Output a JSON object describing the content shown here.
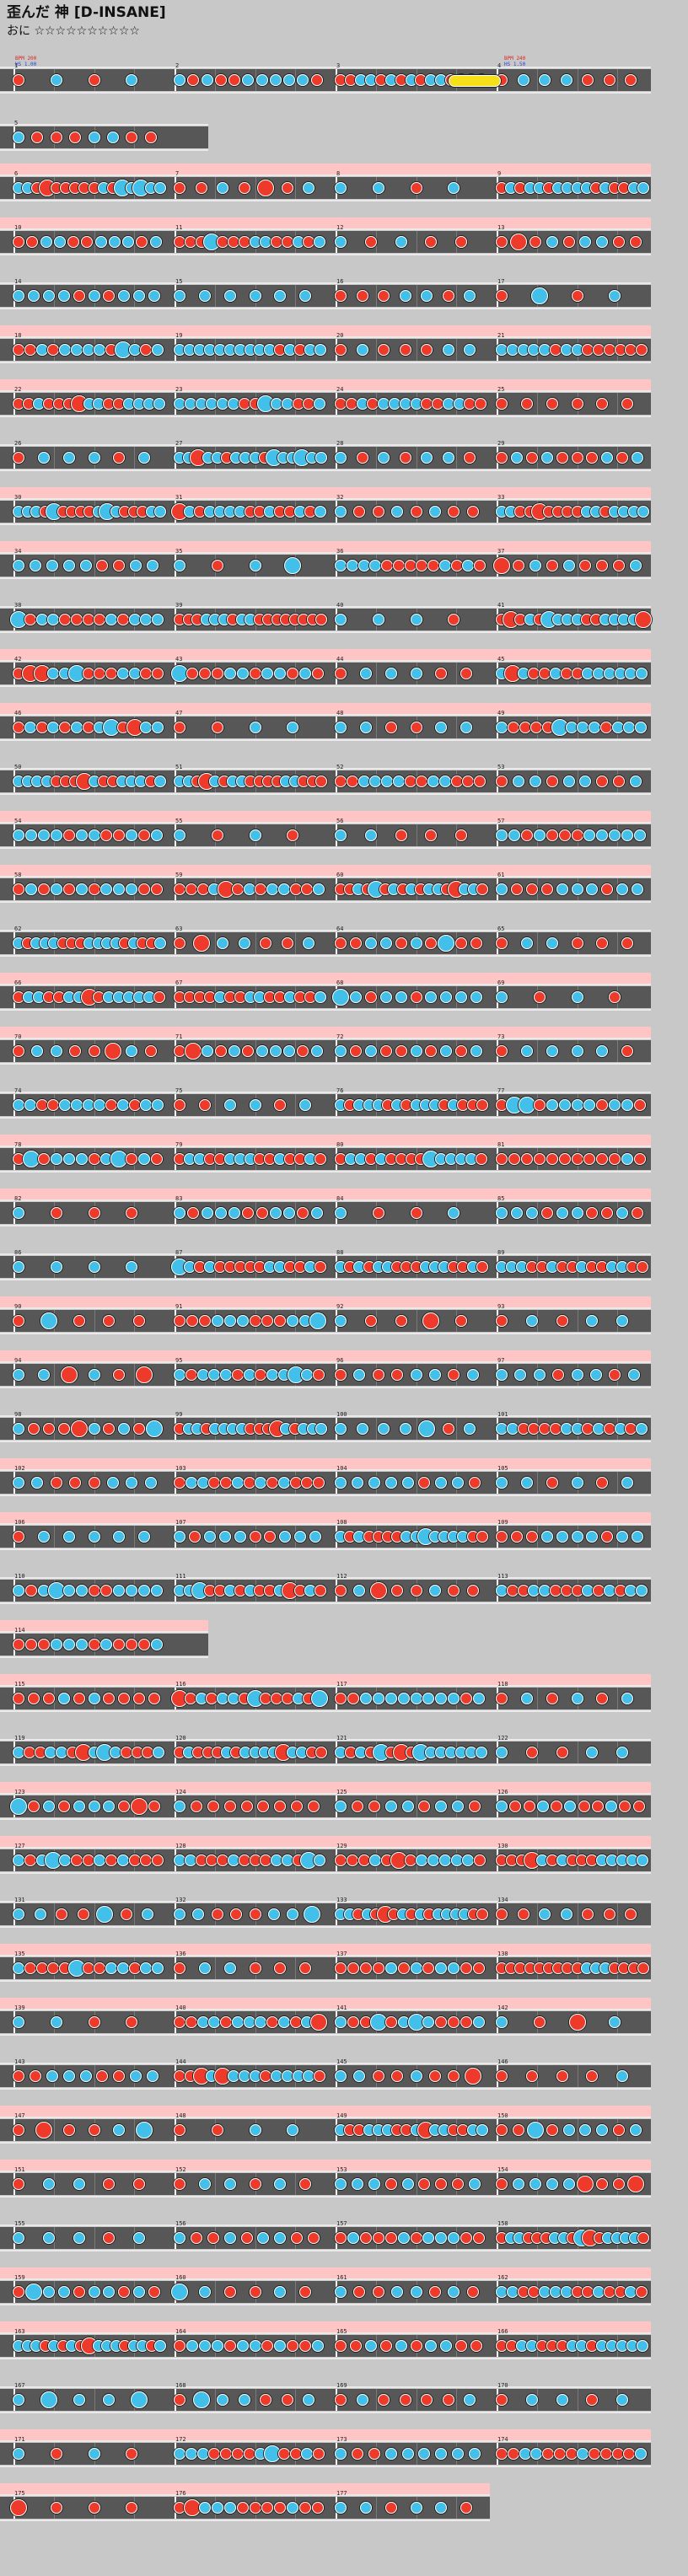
{
  "song": {
    "title": "歪んだ 神 [D-INSANE]",
    "level_label": "おに ☆☆☆☆☆☆☆☆☆☆"
  },
  "colors": {
    "don": "#ee3a2a",
    "ka": "#43c0ea",
    "gogo": "#ffc4c4",
    "lane": "#575757",
    "roll": "#f5e019",
    "background": "#c8c8c8"
  },
  "markers": {
    "start_bpm": "BPM 200",
    "bpm_change": "BPM 240",
    "scroll_low": "HS 1.00",
    "scroll_high": "HS 1.50"
  },
  "chart": {
    "measure_count": 179,
    "note_colors": [
      "don",
      "ka"
    ]
  }
}
